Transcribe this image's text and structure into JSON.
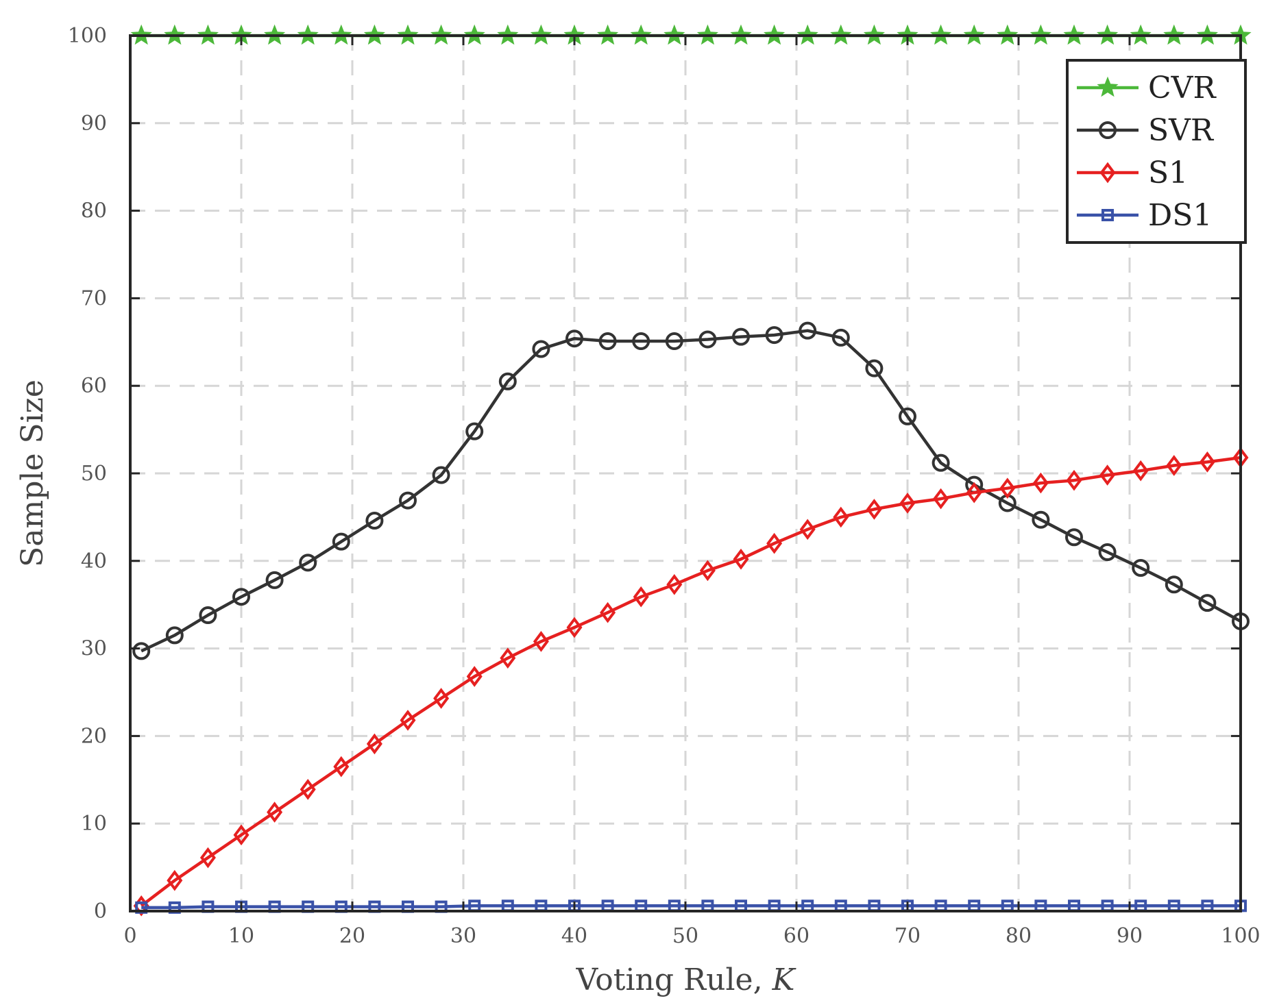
{
  "chart_data": {
    "type": "line",
    "title": "",
    "xlabel": "Voting Rule, ",
    "xlabel_var": "K",
    "ylabel": "Sample Size",
    "xlim": [
      0,
      100
    ],
    "ylim": [
      0,
      100
    ],
    "xticks": [
      "0",
      "10",
      "20",
      "30",
      "40",
      "50",
      "60",
      "70",
      "80",
      "90",
      "100"
    ],
    "yticks": [
      "0",
      "10",
      "20",
      "30",
      "40",
      "50",
      "60",
      "70",
      "80",
      "90",
      "100"
    ],
    "grid": true,
    "legend_position": "top-right",
    "x": [
      1,
      4,
      7,
      10,
      13,
      16,
      19,
      22,
      25,
      28,
      31,
      34,
      37,
      40,
      43,
      46,
      49,
      52,
      55,
      58,
      61,
      64,
      67,
      70,
      73,
      76,
      79,
      82,
      85,
      88,
      91,
      94,
      97,
      100
    ],
    "series": [
      {
        "name": "CVR",
        "color": "#4cb83a",
        "marker": "star",
        "values": [
          100,
          100,
          100,
          100,
          100,
          100,
          100,
          100,
          100,
          100,
          100,
          100,
          100,
          100,
          100,
          100,
          100,
          100,
          100,
          100,
          100,
          100,
          100,
          100,
          100,
          100,
          100,
          100,
          100,
          100,
          100,
          100,
          100,
          100
        ]
      },
      {
        "name": "SVR",
        "color": "#333333",
        "marker": "circle",
        "values": [
          29.7,
          31.5,
          33.8,
          35.9,
          37.8,
          39.8,
          42.2,
          44.6,
          46.9,
          49.8,
          54.8,
          60.5,
          64.2,
          65.4,
          65.1,
          65.1,
          65.1,
          65.3,
          65.6,
          65.8,
          66.3,
          65.5,
          62.0,
          56.5,
          51.2,
          48.7,
          46.6,
          44.7,
          42.7,
          41.0,
          39.2,
          37.3,
          35.2,
          33.1
        ]
      },
      {
        "name": "S1",
        "color": "#e62020",
        "marker": "diamond",
        "values": [
          0.6,
          3.5,
          6.1,
          8.7,
          11.3,
          13.9,
          16.5,
          19.1,
          21.8,
          24.3,
          26.8,
          28.9,
          30.8,
          32.4,
          34.1,
          35.9,
          37.3,
          38.9,
          40.2,
          42.0,
          43.6,
          45.0,
          45.9,
          46.6,
          47.1,
          47.8,
          48.3,
          48.9,
          49.2,
          49.8,
          50.3,
          50.9,
          51.3,
          51.8
        ]
      },
      {
        "name": "DS1",
        "color": "#3a52a8",
        "marker": "square",
        "values": [
          0.4,
          0.4,
          0.5,
          0.5,
          0.5,
          0.5,
          0.5,
          0.5,
          0.5,
          0.5,
          0.6,
          0.6,
          0.6,
          0.6,
          0.6,
          0.6,
          0.6,
          0.6,
          0.6,
          0.6,
          0.6,
          0.6,
          0.6,
          0.6,
          0.6,
          0.6,
          0.6,
          0.6,
          0.6,
          0.6,
          0.6,
          0.6,
          0.6,
          0.6
        ]
      }
    ]
  }
}
